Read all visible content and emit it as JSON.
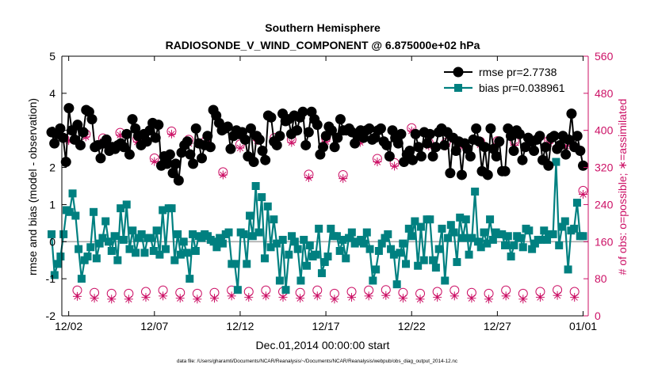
{
  "chart_data": {
    "type": "line",
    "title": "Southern Hemisphere",
    "subtitle": "RADIOSONDE_V_WIND_COMPONENT @ 6.875000e+02 hPa",
    "xlabel": "Dec.01,2014 00:00:00 start",
    "ylabel_left": "rmse and bias (model - observation)",
    "ylabel_right": "# of obs: o=possible; ∗=assimilated",
    "footer": "data file: /Users/gharamti/Documents/NCAR/Reanalysis/~/Documents/NCAR/Reanalysis/webpub/obs_diag_output_2014-12.nc",
    "x_unit": "days since Dec.01,2014 00:00:00",
    "xlim": [
      0.6,
      31.3
    ],
    "x_ticks": [
      1,
      6,
      11,
      16,
      21,
      26,
      31
    ],
    "x_tick_labels": [
      "12/02",
      "12/07",
      "12/12",
      "12/17",
      "12/22",
      "12/27",
      "01/01"
    ],
    "ylim_left": [
      -2,
      5
    ],
    "y_ticks_left": [
      "-2",
      "-1",
      "0",
      "1",
      "2",
      "3",
      "4",
      "5"
    ],
    "ylim_right": [
      0,
      560
    ],
    "y_ticks_right": [
      "0",
      "80",
      "160",
      "240",
      "320",
      "400",
      "480",
      "560"
    ],
    "grid": false,
    "legend_position": "top-right",
    "zero_line": 0,
    "colors": {
      "rmse": "#000000",
      "bias": "#008080",
      "obs_count": "#cc1166",
      "zero_line": "#aaaaaa"
    },
    "series": [
      {
        "name": "rmse",
        "legend": "rmse pr=2.7738",
        "axis": "left",
        "marker": "filled-circle",
        "values": [
          2.95,
          2.65,
          2.9,
          3.05,
          2.8,
          2.15,
          3.6,
          3.0,
          2.75,
          3.15,
          2.6,
          2.95,
          3.55,
          3.5,
          3.3,
          2.55,
          2.6,
          2.25,
          2.65,
          2.75,
          2.45,
          2.55,
          2.5,
          2.6,
          2.65,
          2.55,
          2.9,
          2.35,
          3.3,
          3.05,
          2.85,
          2.6,
          2.9,
          2.7,
          3.0,
          3.2,
          2.8,
          3.15,
          2.05,
          2.3,
          2.1,
          2.35,
          1.85,
          2.1,
          1.65,
          2.4,
          2.6,
          2.7,
          2.35,
          2.1,
          3.05,
          2.65,
          2.25,
          2.6,
          2.85,
          2.55,
          3.55,
          3.4,
          3.2,
          3.0,
          3.05,
          3.1,
          2.5,
          2.85,
          3.0,
          2.9,
          2.95,
          2.75,
          2.3,
          3.05,
          2.15,
          2.85,
          2.75,
          2.45,
          2.2,
          3.4,
          3.35,
          2.7,
          2.6,
          2.85,
          3.45,
          3.25,
          3.3,
          2.9,
          3.4,
          3.0,
          3.35,
          3.5,
          2.6,
          2.95,
          3.5,
          3.3,
          3.15,
          2.35,
          2.55,
          2.85,
          3.1,
          3.0,
          2.55,
          2.8,
          3.3,
          3.0,
          3.0,
          3.05,
          2.95,
          2.65,
          2.85,
          3.0,
          2.8,
          3.0,
          3.05,
          2.75,
          2.8,
          3.0,
          3.05,
          2.7,
          2.6,
          2.3,
          3.0,
          2.8,
          2.65,
          2.9,
          2.15,
          2.35,
          2.45,
          2.2,
          2.9,
          2.55,
          2.3,
          2.95,
          2.65,
          2.9,
          2.3,
          2.55,
          2.95,
          3.05,
          2.6,
          2.95,
          1.85,
          2.8,
          2.45,
          2.7,
          1.8,
          2.65,
          2.5,
          2.3,
          2.75,
          3.05,
          2.7,
          1.9,
          2.55,
          1.8,
          3.05,
          2.5,
          2.3,
          2.7,
          1.9,
          1.9,
          3.05,
          2.85,
          2.45,
          3.0,
          2.9,
          2.2,
          2.55,
          2.8,
          2.7,
          2.45,
          2.75,
          2.85,
          2.2,
          2.55,
          2.05,
          2.8,
          2.85,
          2.5,
          2.6,
          2.85,
          2.35,
          2.75,
          3.45,
          2.55,
          2.85,
          2.45,
          2.05
        ]
      },
      {
        "name": "bias",
        "legend": "bias pr=0.038961",
        "axis": "left",
        "marker": "filled-square",
        "values": [
          0.2,
          -0.9,
          -0.6,
          -0.4,
          0.2,
          0.85,
          0.8,
          1.3,
          0.7,
          -0.2,
          -1.0,
          -0.5,
          -0.4,
          -0.15,
          0.8,
          -0.45,
          -0.05,
          0.1,
          0.55,
          0.0,
          -0.25,
          0.15,
          -0.5,
          0.9,
          0.05,
          1.0,
          -0.2,
          0.3,
          -0.3,
          0.1,
          0.2,
          -0.3,
          0.1,
          0.1,
          -0.25,
          0.3,
          -0.35,
          0.85,
          -0.2,
          0.9,
          0.9,
          -0.5,
          0.2,
          -0.35,
          0.0,
          -0.3,
          -1.0,
          0.2,
          -0.25,
          0.15,
          0.1,
          0.2,
          0.15,
          0.05,
          0.0,
          -0.15,
          0.1,
          -0.05,
          0.2,
          0.25,
          -0.6,
          -0.6,
          -1.3,
          0.25,
          0.2,
          -0.6,
          0.7,
          0.15,
          1.5,
          0.25,
          1.2,
          -0.45,
          0.95,
          -0.15,
          0.6,
          -0.05,
          -1.05,
          0.05,
          -1.3,
          -0.35,
          0.15,
          0.0,
          -0.2,
          -1.05,
          0.05,
          -0.65,
          -0.1,
          -0.4,
          -0.35,
          0.35,
          -0.85,
          -0.55,
          -0.4,
          0.35,
          0.15,
          0.15,
          -0.25,
          0.05,
          -0.45,
          0.1,
          0.25,
          -0.05,
          0.0,
          0.05,
          -0.05,
          0.25,
          -0.2,
          -1.05,
          -0.75,
          -0.25,
          -0.05,
          0.1,
          0.2,
          -0.2,
          -0.35,
          -1.15,
          -0.3,
          -0.05,
          -0.6,
          0.35,
          0.15,
          0.55,
          -0.65,
          0.4,
          -0.5,
          0.6,
          0.6,
          -0.5,
          -0.7,
          -0.2,
          0.35,
          -1.05,
          0.1,
          0.45,
          0.25,
          -0.55,
          0.65,
          0.1,
          0.6,
          -0.35,
          0.1,
          1.35,
          0.0,
          -0.15,
          0.25,
          -0.05,
          0.6,
          0.05,
          0.25,
          0.2,
          0.2,
          -0.1,
          0.15,
          -0.4,
          -0.1,
          0.15,
          0.1,
          -0.15,
          0.35,
          0.3,
          -0.2,
          -0.05,
          0.05,
          0.05,
          0.3,
          0.05,
          0.2,
          0.2,
          2.15,
          -0.1,
          0.4,
          0.55,
          -0.75,
          0.3,
          0.35,
          1.05,
          0.15,
          0.15
        ]
      },
      {
        "name": "obs_possible",
        "legend": "o=possible",
        "axis": "right",
        "marker": "open-circle",
        "pattern": "two observation times per day",
        "hour_00": [
          402,
          383,
          392,
          383,
          395,
          382,
          340,
          398,
          380,
          378,
          310,
          370,
          384,
          384,
          380,
          305,
          383,
          304,
          380,
          339,
          330,
          405,
          374,
          374,
          372,
          376,
          377,
          376,
          378,
          378,
          374,
          270,
          397
        ],
        "hour_12": [
          52,
          55,
          50,
          48,
          48,
          52,
          55,
          50,
          48,
          50,
          55,
          52,
          55,
          52,
          50,
          55,
          48,
          52,
          55,
          56,
          50,
          48,
          52,
          55,
          50,
          48,
          55,
          48,
          52,
          56,
          52,
          55,
          12
        ]
      },
      {
        "name": "obs_assimilated",
        "legend": "∗=assimilated",
        "axis": "right",
        "marker": "asterisk",
        "pattern": "two observation times per day",
        "hour_00": [
          397,
          378,
          386,
          376,
          390,
          375,
          333,
          392,
          372,
          372,
          304,
          362,
          378,
          378,
          374,
          298,
          376,
          296,
          374,
          332,
          323,
          399,
          366,
          366,
          364,
          369,
          371,
          368,
          372,
          372,
          366,
          262,
          390
        ],
        "hour_12": [
          40,
          42,
          38,
          36,
          36,
          40,
          43,
          38,
          36,
          38,
          43,
          40,
          43,
          40,
          38,
          43,
          36,
          40,
          43,
          44,
          38,
          36,
          40,
          43,
          38,
          36,
          43,
          36,
          40,
          44,
          40,
          43,
          6
        ]
      }
    ]
  }
}
